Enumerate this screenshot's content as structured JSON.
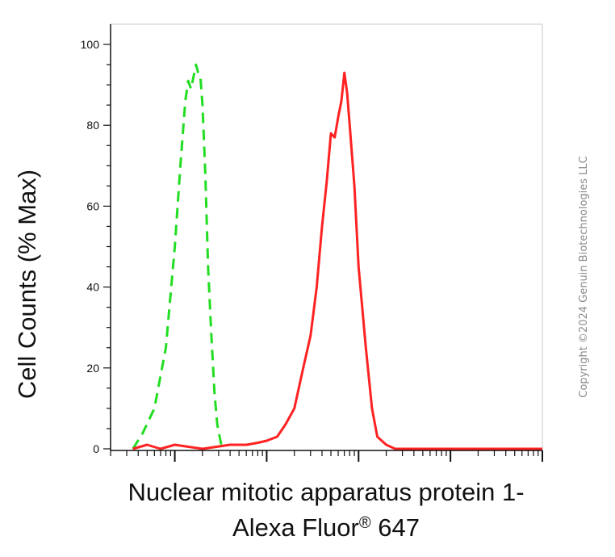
{
  "chart_data": {
    "type": "line",
    "title": "",
    "xlabel_line1": "Nuclear mitotic apparatus protein 1-",
    "xlabel_line2_prefix": "Alexa Fluor",
    "xlabel_line2_reg": "®",
    "xlabel_line2_suffix": " 647",
    "ylabel": "Cell Counts (% Max)",
    "x_scale": "log",
    "xlim": [
      20,
      1000000
    ],
    "ylim": [
      0,
      100
    ],
    "y_ticks": [
      0,
      20,
      40,
      60,
      80,
      100
    ],
    "grid": false,
    "legend": "none",
    "series": [
      {
        "color": "#22dd22",
        "style": "dashed",
        "x": [
          35,
          45,
          60,
          80,
          100,
          115,
          130,
          140,
          150,
          160,
          170,
          180,
          190,
          200,
          215,
          230,
          250,
          270,
          290,
          320,
          350
        ],
        "y": [
          0,
          4,
          10,
          25,
          50,
          70,
          86,
          91,
          89,
          92,
          95,
          93,
          92,
          85,
          68,
          45,
          28,
          14,
          6,
          1,
          0
        ]
      },
      {
        "color": "#ff2222",
        "style": "solid",
        "x": [
          35,
          50,
          70,
          100,
          200,
          400,
          600,
          800,
          1000,
          1300,
          1600,
          2000,
          2500,
          3000,
          3500,
          4000,
          4500,
          5000,
          5500,
          6000,
          6500,
          7000,
          7500,
          8000,
          9000,
          10000,
          12000,
          14000,
          16000,
          20000,
          25000,
          40000,
          100000,
          1000000
        ],
        "y": [
          0,
          1,
          0,
          1,
          0,
          1,
          1,
          1.5,
          2,
          3,
          6,
          10,
          20,
          28,
          40,
          55,
          66,
          78,
          77,
          82,
          86,
          93,
          88,
          80,
          65,
          45,
          25,
          10,
          3,
          1,
          0,
          0,
          0,
          0
        ]
      }
    ],
    "copyright": "Copyright ©2024 Genuin Biotechnologies LLC"
  }
}
